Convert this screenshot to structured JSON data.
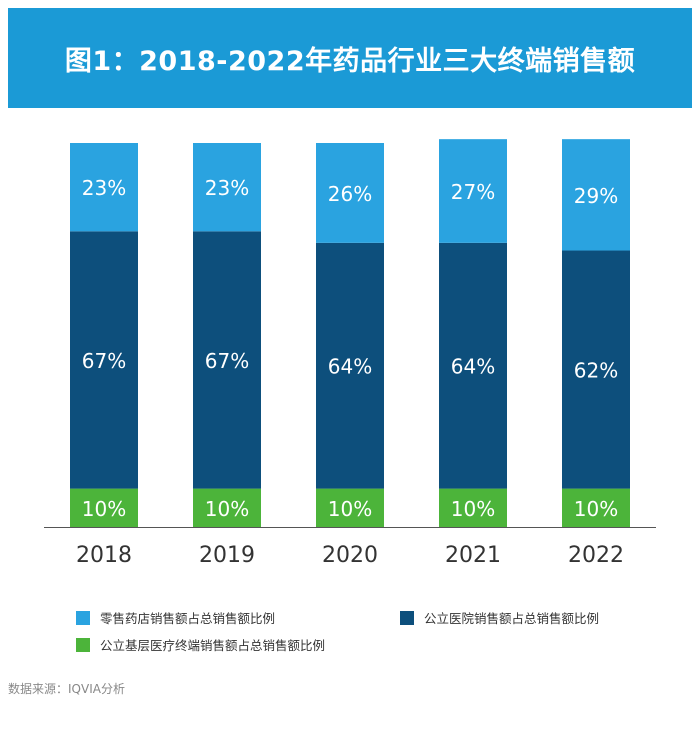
{
  "title": "图1：2018-2022年药品行业三大终端销售额",
  "colors": {
    "title_bg": "#1b9ad6",
    "retail": "#2aa3e0",
    "hospital": "#0d4f7c",
    "primary": "#4cb43a",
    "axis": "#333333"
  },
  "chart_data": {
    "type": "bar",
    "stacked": true,
    "percent": true,
    "title": "图1：2018-2022年药品行业三大终端销售额",
    "categories": [
      "2018",
      "2019",
      "2020",
      "2021",
      "2022"
    ],
    "series": [
      {
        "name": "公立基层医疗终端销售额占总销售额比例",
        "values": [
          10,
          10,
          10,
          10,
          10
        ],
        "labels": [
          "10%",
          "10%",
          "10%",
          "10%",
          "10%"
        ],
        "color": "#4cb43a"
      },
      {
        "name": "公立医院销售额占总销售额比例",
        "values": [
          67,
          67,
          64,
          64,
          62
        ],
        "labels": [
          "67%",
          "67%",
          "64%",
          "64%",
          "62%"
        ],
        "color": "#0d4f7c"
      },
      {
        "name": "零售药店销售额占总销售额比例",
        "values": [
          23,
          23,
          26,
          27,
          29
        ],
        "labels": [
          "23%",
          "23%",
          "26%",
          "27%",
          "29%"
        ],
        "color": "#2aa3e0"
      }
    ],
    "ylim": [
      0,
      100
    ],
    "xlabel": "",
    "ylabel": ""
  },
  "legend": {
    "retail": "零售药店销售额占总销售额比例",
    "hospital": "公立医院销售额占总销售额比例",
    "primary": "公立基层医疗终端销售额占总销售额比例"
  },
  "source": "数据来源：IQVIA分析"
}
